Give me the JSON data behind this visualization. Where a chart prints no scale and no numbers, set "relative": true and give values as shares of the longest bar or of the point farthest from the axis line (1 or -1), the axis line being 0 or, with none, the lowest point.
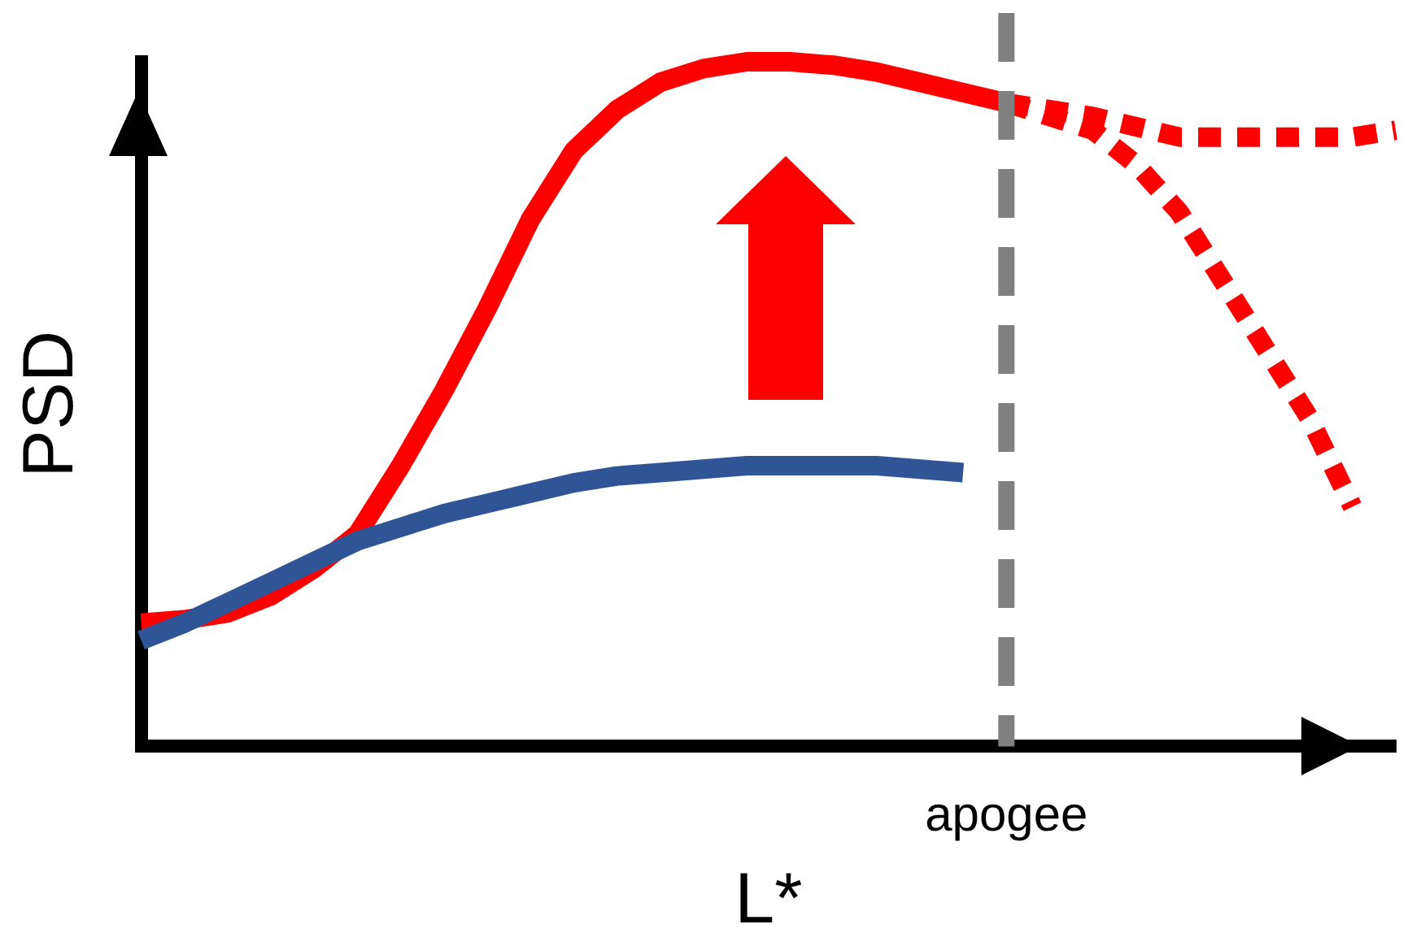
{
  "chart_data": {
    "type": "line",
    "xlabel": "L*",
    "ylabel": "PSD",
    "relative": true,
    "grid": false,
    "legend": false,
    "marker": "none",
    "categories": [
      null,
      null,
      null,
      null,
      null,
      null,
      null,
      null,
      null,
      null,
      null,
      null,
      null,
      null,
      null,
      null,
      null,
      null,
      null,
      null,
      null,
      null,
      null,
      null,
      null,
      null,
      null,
      null,
      null,
      null
    ],
    "series": [
      {
        "color": "#2f5597",
        "line_style": "solid",
        "values": [
          0.155,
          0.18,
          0.21,
          0.24,
          0.27,
          0.3,
          0.32,
          0.34,
          0.355,
          0.37,
          0.385,
          0.395,
          0.4,
          0.405,
          0.41,
          0.41,
          0.41,
          0.41,
          0.405,
          0.4,
          null,
          null,
          null,
          null,
          null,
          null,
          null,
          null,
          null,
          null
        ]
      },
      {
        "color": "#ff0000",
        "line_style": "solid",
        "values": [
          0.18,
          0.185,
          0.195,
          0.22,
          0.26,
          0.31,
          0.41,
          0.52,
          0.64,
          0.77,
          0.87,
          0.93,
          0.97,
          0.99,
          1.0,
          1.0,
          0.995,
          0.985,
          0.97,
          0.955,
          0.94,
          null,
          null,
          null,
          null,
          null,
          null,
          null,
          null,
          null
        ]
      },
      {
        "color": "#ff0000",
        "line_style": "dotted",
        "values": [
          null,
          null,
          null,
          null,
          null,
          null,
          null,
          null,
          null,
          null,
          null,
          null,
          null,
          null,
          null,
          null,
          null,
          null,
          null,
          null,
          0.94,
          0.93,
          0.92,
          0.905,
          0.89,
          0.89,
          0.89,
          0.89,
          0.89,
          0.9
        ]
      },
      {
        "color": "#ff0000",
        "line_style": "dotted",
        "values": [
          null,
          null,
          null,
          null,
          null,
          null,
          null,
          null,
          null,
          null,
          null,
          null,
          null,
          null,
          null,
          null,
          null,
          null,
          null,
          null,
          0.94,
          0.92,
          0.9,
          0.85,
          0.78,
          0.68,
          0.58,
          0.48,
          0.35,
          null
        ]
      }
    ],
    "ref_lines": [
      {
        "axis": "x",
        "label": "apogee",
        "color": "#808080",
        "line_style": "dashed"
      }
    ]
  }
}
